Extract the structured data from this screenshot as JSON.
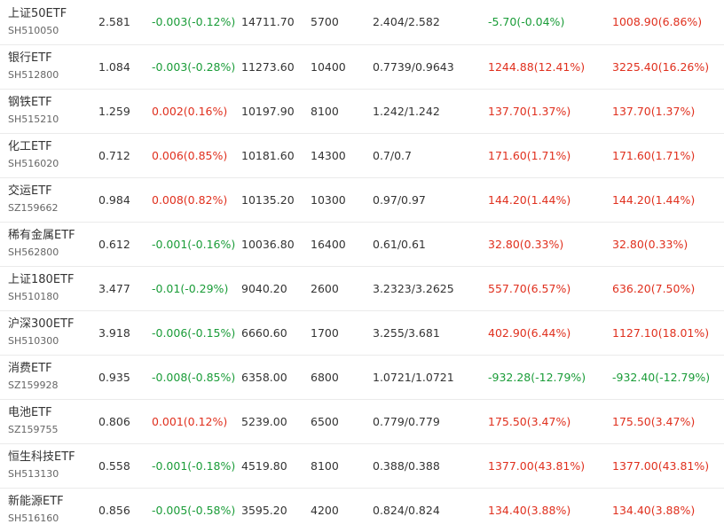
{
  "colors": {
    "up": "#e0301e",
    "down": "#1a9c38",
    "neutral": "#333333"
  },
  "rows": [
    {
      "name": "上证50ETF",
      "code": "SH510050",
      "price": "2.581",
      "change": "-0.003(-0.12%)",
      "change_dir": "neg",
      "amount": "14711.70",
      "volume": "5700",
      "range": "2.404/2.582",
      "pl1": "-5.70(-0.04%)",
      "pl1_dir": "neg",
      "pl2": "1008.90(6.86%)",
      "pl2_dir": "pos"
    },
    {
      "name": "银行ETF",
      "code": "SH512800",
      "price": "1.084",
      "change": "-0.003(-0.28%)",
      "change_dir": "neg",
      "amount": "11273.60",
      "volume": "10400",
      "range": "0.7739/0.9643",
      "pl1": "1244.88(12.41%)",
      "pl1_dir": "pos",
      "pl2": "3225.40(16.26%)",
      "pl2_dir": "pos"
    },
    {
      "name": "钢铁ETF",
      "code": "SH515210",
      "price": "1.259",
      "change": "0.002(0.16%)",
      "change_dir": "pos",
      "amount": "10197.90",
      "volume": "8100",
      "range": "1.242/1.242",
      "pl1": "137.70(1.37%)",
      "pl1_dir": "pos",
      "pl2": "137.70(1.37%)",
      "pl2_dir": "pos"
    },
    {
      "name": "化工ETF",
      "code": "SH516020",
      "price": "0.712",
      "change": "0.006(0.85%)",
      "change_dir": "pos",
      "amount": "10181.60",
      "volume": "14300",
      "range": "0.7/0.7",
      "pl1": "171.60(1.71%)",
      "pl1_dir": "pos",
      "pl2": "171.60(1.71%)",
      "pl2_dir": "pos"
    },
    {
      "name": "交运ETF",
      "code": "SZ159662",
      "price": "0.984",
      "change": "0.008(0.82%)",
      "change_dir": "pos",
      "amount": "10135.20",
      "volume": "10300",
      "range": "0.97/0.97",
      "pl1": "144.20(1.44%)",
      "pl1_dir": "pos",
      "pl2": "144.20(1.44%)",
      "pl2_dir": "pos"
    },
    {
      "name": "稀有金属ETF",
      "code": "SH562800",
      "price": "0.612",
      "change": "-0.001(-0.16%)",
      "change_dir": "neg",
      "amount": "10036.80",
      "volume": "16400",
      "range": "0.61/0.61",
      "pl1": "32.80(0.33%)",
      "pl1_dir": "pos",
      "pl2": "32.80(0.33%)",
      "pl2_dir": "pos"
    },
    {
      "name": "上证180ETF",
      "code": "SH510180",
      "price": "3.477",
      "change": "-0.01(-0.29%)",
      "change_dir": "neg",
      "amount": "9040.20",
      "volume": "2600",
      "range": "3.2323/3.2625",
      "pl1": "557.70(6.57%)",
      "pl1_dir": "pos",
      "pl2": "636.20(7.50%)",
      "pl2_dir": "pos"
    },
    {
      "name": "沪深300ETF",
      "code": "SH510300",
      "price": "3.918",
      "change": "-0.006(-0.15%)",
      "change_dir": "neg",
      "amount": "6660.60",
      "volume": "1700",
      "range": "3.255/3.681",
      "pl1": "402.90(6.44%)",
      "pl1_dir": "pos",
      "pl2": "1127.10(18.01%)",
      "pl2_dir": "pos"
    },
    {
      "name": "消费ETF",
      "code": "SZ159928",
      "price": "0.935",
      "change": "-0.008(-0.85%)",
      "change_dir": "neg",
      "amount": "6358.00",
      "volume": "6800",
      "range": "1.0721/1.0721",
      "pl1": "-932.28(-12.79%)",
      "pl1_dir": "neg",
      "pl2": "-932.40(-12.79%)",
      "pl2_dir": "neg"
    },
    {
      "name": "电池ETF",
      "code": "SZ159755",
      "price": "0.806",
      "change": "0.001(0.12%)",
      "change_dir": "pos",
      "amount": "5239.00",
      "volume": "6500",
      "range": "0.779/0.779",
      "pl1": "175.50(3.47%)",
      "pl1_dir": "pos",
      "pl2": "175.50(3.47%)",
      "pl2_dir": "pos"
    },
    {
      "name": "恒生科技ETF",
      "code": "SH513130",
      "price": "0.558",
      "change": "-0.001(-0.18%)",
      "change_dir": "neg",
      "amount": "4519.80",
      "volume": "8100",
      "range": "0.388/0.388",
      "pl1": "1377.00(43.81%)",
      "pl1_dir": "pos",
      "pl2": "1377.00(43.81%)",
      "pl2_dir": "pos"
    },
    {
      "name": "新能源ETF",
      "code": "SH516160",
      "price": "0.856",
      "change": "-0.005(-0.58%)",
      "change_dir": "neg",
      "amount": "3595.20",
      "volume": "4200",
      "range": "0.824/0.824",
      "pl1": "134.40(3.88%)",
      "pl1_dir": "pos",
      "pl2": "134.40(3.88%)",
      "pl2_dir": "pos"
    }
  ]
}
